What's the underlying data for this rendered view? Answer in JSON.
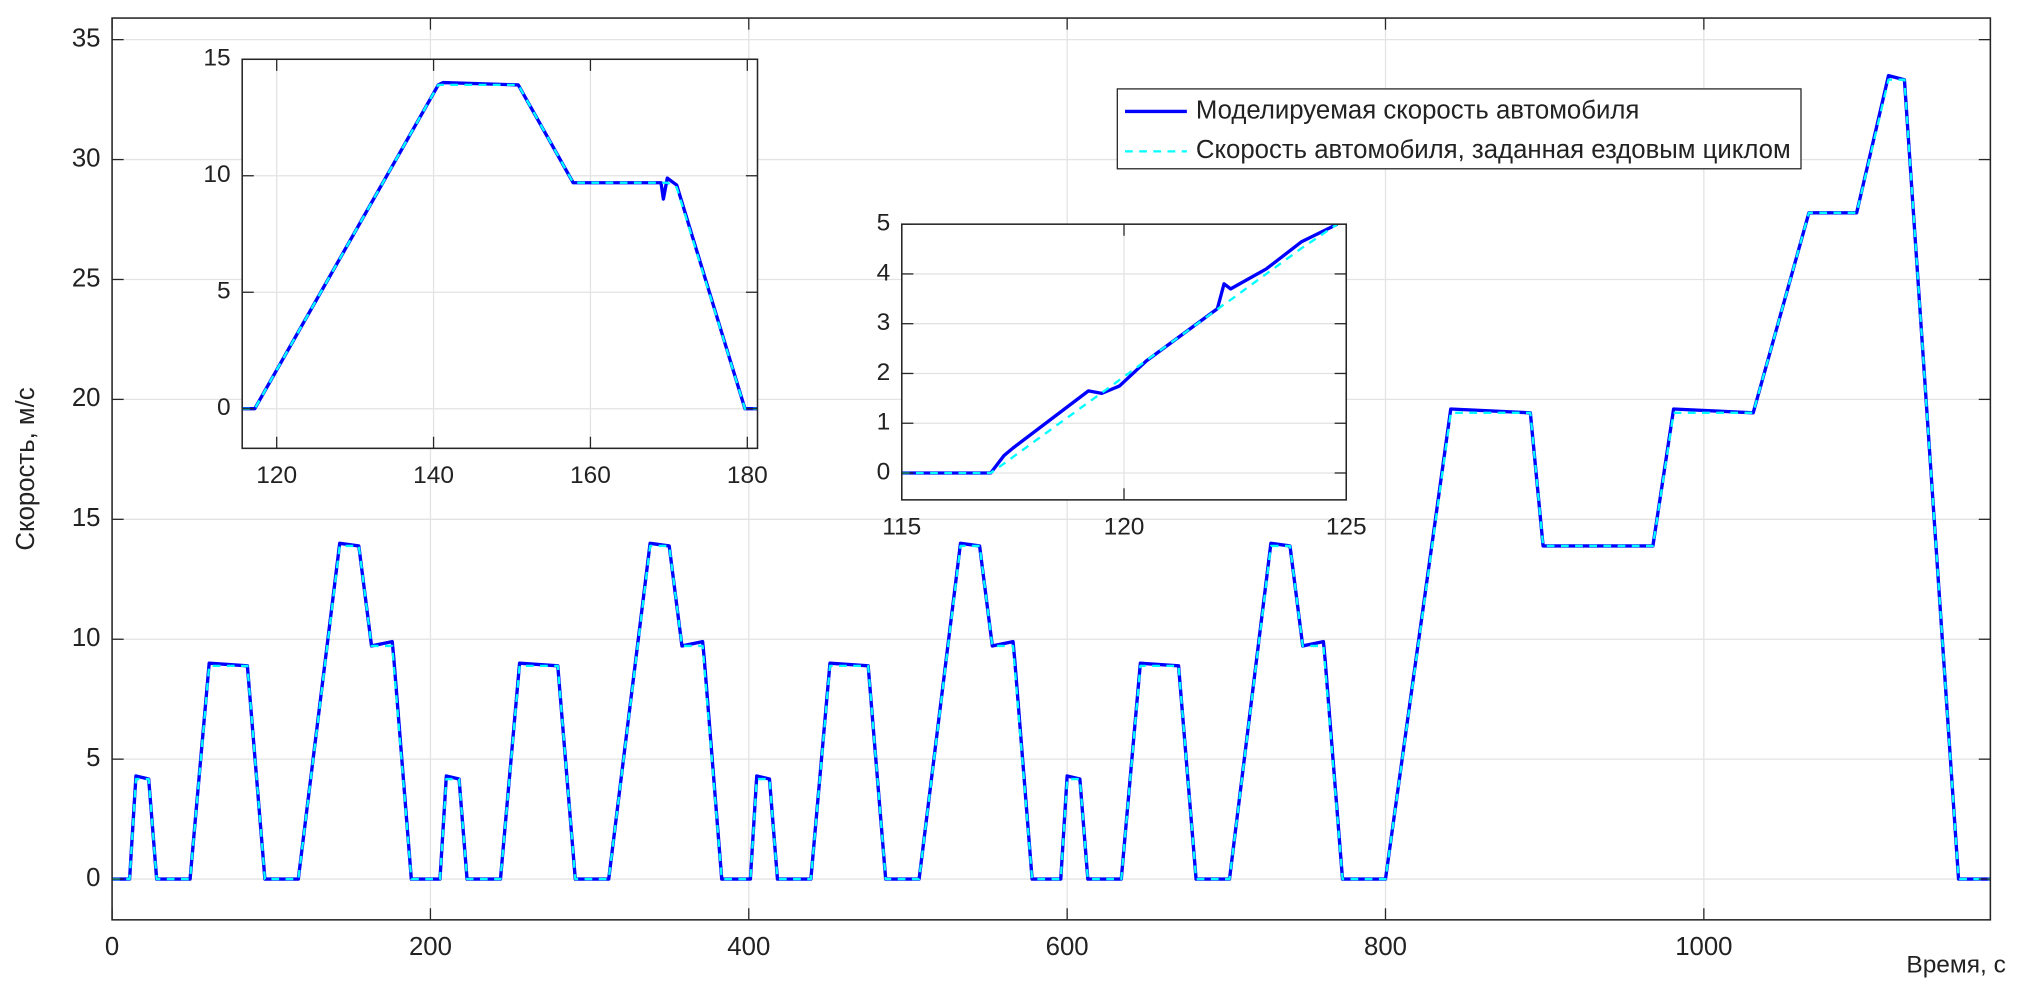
{
  "chart_data": [
    {
      "type": "line",
      "xlabel": "Время, с",
      "ylabel": "Скорость, м/с",
      "x": [
        0,
        11,
        15,
        23,
        28,
        49,
        61,
        85,
        96,
        117,
        143,
        155,
        163,
        176,
        177,
        188,
        195,
        206,
        210,
        218,
        223,
        244,
        256,
        280,
        291,
        312,
        338,
        350,
        358,
        371,
        372,
        383,
        390,
        401,
        405,
        413,
        418,
        439,
        451,
        475,
        486,
        507,
        533,
        545,
        553,
        566,
        567,
        578,
        585,
        596,
        600,
        608,
        613,
        634,
        646,
        670,
        681,
        702,
        728,
        740,
        748,
        761,
        762,
        773,
        780,
        800,
        841,
        891,
        899,
        968,
        981,
        1031,
        1066,
        1096,
        1116,
        1126,
        1160,
        1180
      ],
      "series": [
        {
          "name": "Моделируемая скорость автомобиля",
          "color": "#0000ff",
          "dash": false,
          "values": [
            0,
            0,
            4.3,
            4.17,
            0,
            0,
            9.0,
            8.89,
            0,
            0,
            14.0,
            13.89,
            9.72,
            9.9,
            9.2,
            0,
            0,
            0,
            4.3,
            4.17,
            0,
            0,
            9.0,
            8.89,
            0,
            0,
            14.0,
            13.89,
            9.72,
            9.9,
            9.2,
            0,
            0,
            0,
            4.3,
            4.17,
            0,
            0,
            9.0,
            8.89,
            0,
            0,
            14.0,
            13.89,
            9.72,
            9.9,
            9.2,
            0,
            0,
            0,
            4.3,
            4.17,
            0,
            0,
            9.0,
            8.89,
            0,
            0,
            14.0,
            13.89,
            9.72,
            9.9,
            9.2,
            0,
            0,
            0,
            19.6,
            19.44,
            13.89,
            13.89,
            19.6,
            19.44,
            27.78,
            27.78,
            33.5,
            33.33,
            0,
            0
          ]
        },
        {
          "name": "Скорость автомобиля, заданная ездовым циклом",
          "color": "#00ffff",
          "dash": true,
          "values": [
            0,
            0,
            4.17,
            4.17,
            0,
            0,
            8.89,
            8.89,
            0,
            0,
            13.89,
            13.89,
            9.72,
            9.72,
            8.91,
            0,
            0,
            0,
            4.17,
            4.17,
            0,
            0,
            8.89,
            8.89,
            0,
            0,
            13.89,
            13.89,
            9.72,
            9.72,
            8.91,
            0,
            0,
            0,
            4.17,
            4.17,
            0,
            0,
            8.89,
            8.89,
            0,
            0,
            13.89,
            13.89,
            9.72,
            9.72,
            8.91,
            0,
            0,
            0,
            4.17,
            4.17,
            0,
            0,
            8.89,
            8.89,
            0,
            0,
            13.89,
            13.89,
            9.72,
            9.72,
            8.91,
            0,
            0,
            0,
            19.44,
            19.44,
            13.89,
            13.89,
            19.44,
            19.44,
            27.78,
            27.78,
            33.33,
            33.33,
            0,
            0
          ]
        }
      ],
      "xlim": [
        0,
        1180
      ],
      "ylim": [
        -1.7,
        35.9
      ],
      "xticks": [
        0,
        200,
        400,
        600,
        800,
        1000
      ],
      "yticks": [
        0,
        5,
        10,
        15,
        20,
        25,
        30,
        35
      ],
      "grid": true,
      "legend": "upper right"
    },
    {
      "type": "line",
      "x": [
        115.6,
        117.2,
        140.6,
        141.2,
        150.8,
        157.8,
        169.0,
        169.3,
        169.8,
        171.0,
        179.7,
        181.3
      ],
      "series": [
        {
          "color": "#0000ff",
          "dash": false,
          "values": [
            0,
            0,
            13.9,
            14.0,
            13.9,
            9.7,
            9.7,
            9.0,
            9.9,
            9.6,
            0,
            0
          ]
        },
        {
          "color": "#00ffff",
          "dash": true,
          "values": [
            0,
            0,
            13.9,
            13.9,
            13.9,
            9.7,
            9.7,
            9.7,
            9.7,
            9.5,
            0,
            0
          ]
        }
      ],
      "xlim": [
        115.6,
        181.3
      ],
      "ylim": [
        -1.7,
        15
      ],
      "xticks": [
        120,
        140,
        160,
        180
      ],
      "yticks": [
        0,
        5,
        10,
        15
      ],
      "grid": true
    },
    {
      "type": "line",
      "x": [
        115,
        117,
        117.3,
        117.5,
        119.2,
        119.5,
        119.9,
        120.5,
        122.1,
        122.25,
        122.4,
        123.2,
        124,
        124.8
      ],
      "series": [
        {
          "color": "#0000ff",
          "dash": false,
          "values": [
            0,
            0,
            0.35,
            0.5,
            1.65,
            1.6,
            1.75,
            2.25,
            3.3,
            3.8,
            3.7,
            4.1,
            4.65,
            5
          ]
        },
        {
          "color": "#00ffff",
          "dash": true,
          "values": [
            0,
            0,
            0.19,
            0.32,
            1.42,
            1.61,
            1.87,
            2.26,
            3.29,
            3.39,
            3.48,
            4.0,
            4.52,
            5
          ]
        }
      ],
      "xlim": [
        115,
        125
      ],
      "ylim": [
        -0.54,
        5
      ],
      "xticks": [
        115,
        120,
        125
      ],
      "yticks": [
        0,
        1,
        2,
        3,
        4,
        5
      ],
      "grid": true
    }
  ]
}
